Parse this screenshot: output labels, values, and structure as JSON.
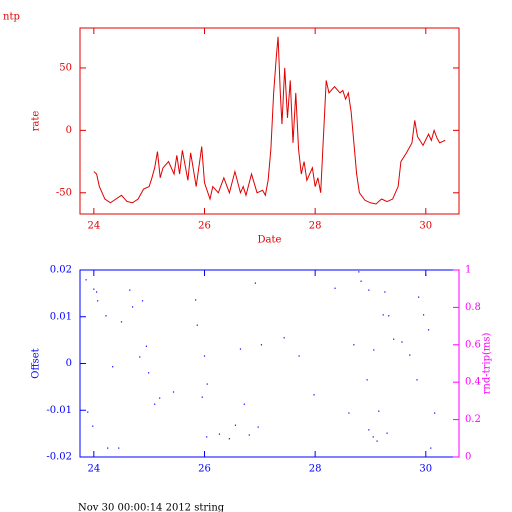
{
  "chart_data": [
    {
      "type": "line",
      "title": "ntp",
      "x_label": "Date",
      "y_label": "rate",
      "xlim": [
        23.75,
        30.6
      ],
      "ylim": [
        -67,
        82
      ],
      "xticks": [
        24,
        26,
        28,
        30
      ],
      "yticks": [
        -50,
        0,
        50
      ],
      "color": "#e00000",
      "axis_color": "#e00000",
      "x": [
        24.0,
        24.05,
        24.1,
        24.2,
        24.3,
        24.4,
        24.5,
        24.6,
        24.7,
        24.8,
        24.9,
        25.0,
        25.05,
        25.1,
        25.15,
        25.2,
        25.25,
        25.35,
        25.45,
        25.5,
        25.55,
        25.6,
        25.7,
        25.75,
        25.85,
        25.95,
        26.0,
        26.1,
        26.15,
        26.25,
        26.35,
        26.45,
        26.55,
        26.65,
        26.7,
        26.75,
        26.85,
        26.95,
        27.05,
        27.1,
        27.15,
        27.2,
        27.25,
        27.3,
        27.33,
        27.37,
        27.4,
        27.45,
        27.5,
        27.55,
        27.6,
        27.65,
        27.7,
        27.75,
        27.8,
        27.85,
        27.95,
        28.0,
        28.05,
        28.1,
        28.2,
        28.25,
        28.35,
        28.45,
        28.5,
        28.55,
        28.6,
        28.65,
        28.7,
        28.75,
        28.8,
        28.9,
        29.0,
        29.1,
        29.2,
        29.3,
        29.4,
        29.5,
        29.55,
        29.65,
        29.75,
        29.8,
        29.85,
        29.95,
        30.05,
        30.1,
        30.15,
        30.2,
        30.25,
        30.35
      ],
      "values": [
        -33,
        -35,
        -45,
        -55,
        -58,
        -55,
        -52,
        -57,
        -58,
        -55,
        -47,
        -45,
        -38,
        -30,
        -17,
        -38,
        -30,
        -25,
        -35,
        -20,
        -35,
        -16,
        -40,
        -18,
        -45,
        -13,
        -42,
        -55,
        -45,
        -50,
        -38,
        -50,
        -33,
        -50,
        -45,
        -52,
        -35,
        -50,
        -48,
        -52,
        -40,
        -15,
        30,
        60,
        75,
        30,
        5,
        50,
        10,
        40,
        -10,
        30,
        -15,
        -35,
        -25,
        -40,
        -30,
        -45,
        -38,
        -50,
        40,
        30,
        35,
        30,
        32,
        25,
        30,
        15,
        -10,
        -35,
        -50,
        -56,
        -58,
        -59,
        -55,
        -57,
        -55,
        -45,
        -25,
        -18,
        -10,
        8,
        -5,
        -12,
        -3,
        -8,
        0,
        -6,
        -10,
        -8
      ]
    },
    {
      "type": "scatter",
      "y_label": "Offset",
      "y2_label": "rnd-trip(ms)",
      "xlim": [
        23.75,
        30.6
      ],
      "ylim": [
        -0.02,
        0.02
      ],
      "y2lim": [
        0,
        1
      ],
      "xticks": [
        24,
        26,
        28,
        30
      ],
      "yticks": [
        -0.02,
        -0.01,
        0,
        0.01,
        0.02
      ],
      "y2ticks": [
        0,
        0.2,
        0.4,
        0.6,
        0.8,
        1
      ],
      "color": "#0000ff",
      "axis_color": "#0000ff",
      "y2_color": "#ff00ff",
      "x": [
        23.86,
        23.89,
        24.0,
        24.05,
        24.22,
        24.25,
        23.98,
        24.07,
        24.34,
        24.45,
        24.5,
        24.65,
        24.7,
        24.83,
        24.88,
        24.95,
        24.99,
        25.1,
        25.19,
        25.44,
        25.84,
        25.87,
        25.96,
        26.0,
        26.04,
        26.05,
        26.27,
        26.45,
        26.56,
        26.65,
        26.72,
        26.81,
        26.92,
        26.97,
        27.03,
        27.44,
        27.71,
        27.98,
        28.36,
        28.61,
        28.79,
        28.83,
        28.97,
        29.06,
        28.94,
        28.97,
        29.05,
        29.12,
        29.15,
        29.23,
        29.26,
        29.3,
        29.33,
        29.42,
        29.57,
        29.71,
        29.84,
        29.87,
        29.96,
        30.0,
        30.05,
        30.09,
        30.16,
        28.7
      ],
      "values": [
        0.0179,
        -0.0104,
        0.0159,
        0.0153,
        0.0102,
        -0.0181,
        -0.0134,
        0.0134,
        -0.0007,
        -0.0181,
        0.0089,
        0.0157,
        0.0121,
        0.0014,
        0.0134,
        0.0037,
        -0.002,
        -0.0087,
        -0.0074,
        -0.0061,
        0.0136,
        0.0082,
        -0.0072,
        0.0016,
        -0.0157,
        -0.0044,
        -0.0151,
        -0.0161,
        -0.0132,
        0.0031,
        -0.0087,
        -0.0153,
        0.0172,
        -0.0136,
        0.004,
        0.0055,
        0.0016,
        -0.0067,
        0.0161,
        -0.0106,
        0.0196,
        0.0176,
        0.0157,
        0.0029,
        -0.0035,
        -0.0142,
        -0.0157,
        -0.0166,
        -0.0102,
        0.0104,
        0.0153,
        -0.0149,
        0.0102,
        0.0052,
        0.0046,
        0.0018,
        -0.0035,
        0.0142,
        0.0104,
        0.0189,
        0.0072,
        -0.0181,
        -0.0106,
        0.004
      ]
    }
  ],
  "footer": "Nov 30 00:00:14 2012 string"
}
